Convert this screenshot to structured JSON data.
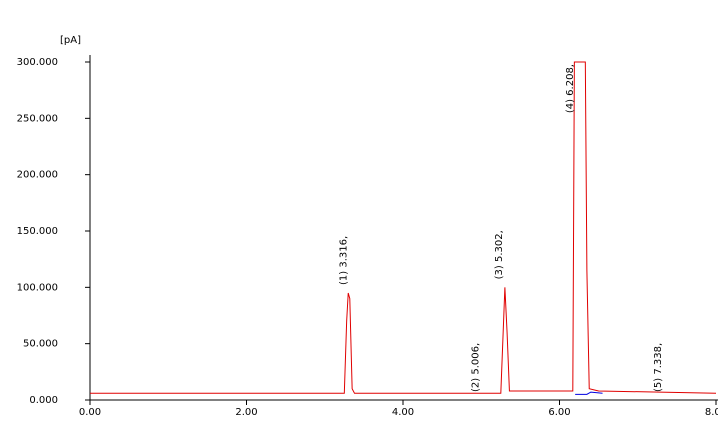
{
  "chart_data": {
    "type": "line",
    "y_axis_label": "[pA]",
    "xlim": [
      0,
      8.0
    ],
    "ylim": [
      0,
      300
    ],
    "xticks": [
      {
        "value": 0,
        "label": "0.00"
      },
      {
        "value": 2,
        "label": "2.00"
      },
      {
        "value": 4,
        "label": "4.00"
      },
      {
        "value": 6,
        "label": "6.00"
      },
      {
        "value": 8,
        "label": "8.00"
      }
    ],
    "yticks": [
      {
        "value": 0,
        "label": "0.000"
      },
      {
        "value": 50,
        "label": "50.000"
      },
      {
        "value": 100,
        "label": "100.000"
      },
      {
        "value": 150,
        "label": "150.000"
      },
      {
        "value": 200,
        "label": "200.000"
      },
      {
        "value": 250,
        "label": "250.000"
      },
      {
        "value": 300,
        "label": "300.000"
      }
    ],
    "series": [
      {
        "color": "#e00000",
        "x": [
          0,
          3.25,
          3.28,
          3.3,
          3.32,
          3.35,
          3.38,
          5.25,
          5.28,
          5.302,
          5.33,
          5.36,
          6.17,
          6.19,
          6.33,
          6.35,
          6.38,
          6.5,
          8.0
        ],
        "values": [
          6,
          6,
          70,
          95,
          90,
          10,
          6,
          6,
          60,
          100,
          60,
          8,
          8,
          300,
          300,
          115,
          10,
          8,
          6
        ]
      },
      {
        "color": "#0000e0",
        "x": [
          6.2,
          6.35,
          6.4,
          6.55
        ],
        "values": [
          5,
          5,
          7,
          6
        ]
      }
    ],
    "annotations": [
      {
        "text": "(1) 3.316,",
        "x": 3.316
      },
      {
        "text": "(2) 5.006,",
        "x": 5.006
      },
      {
        "text": "(3) 5.302,",
        "x": 5.302
      },
      {
        "text": "(4) 6.208,",
        "x": 6.208
      },
      {
        "text": "(5) 7.338,",
        "x": 7.338
      }
    ]
  }
}
